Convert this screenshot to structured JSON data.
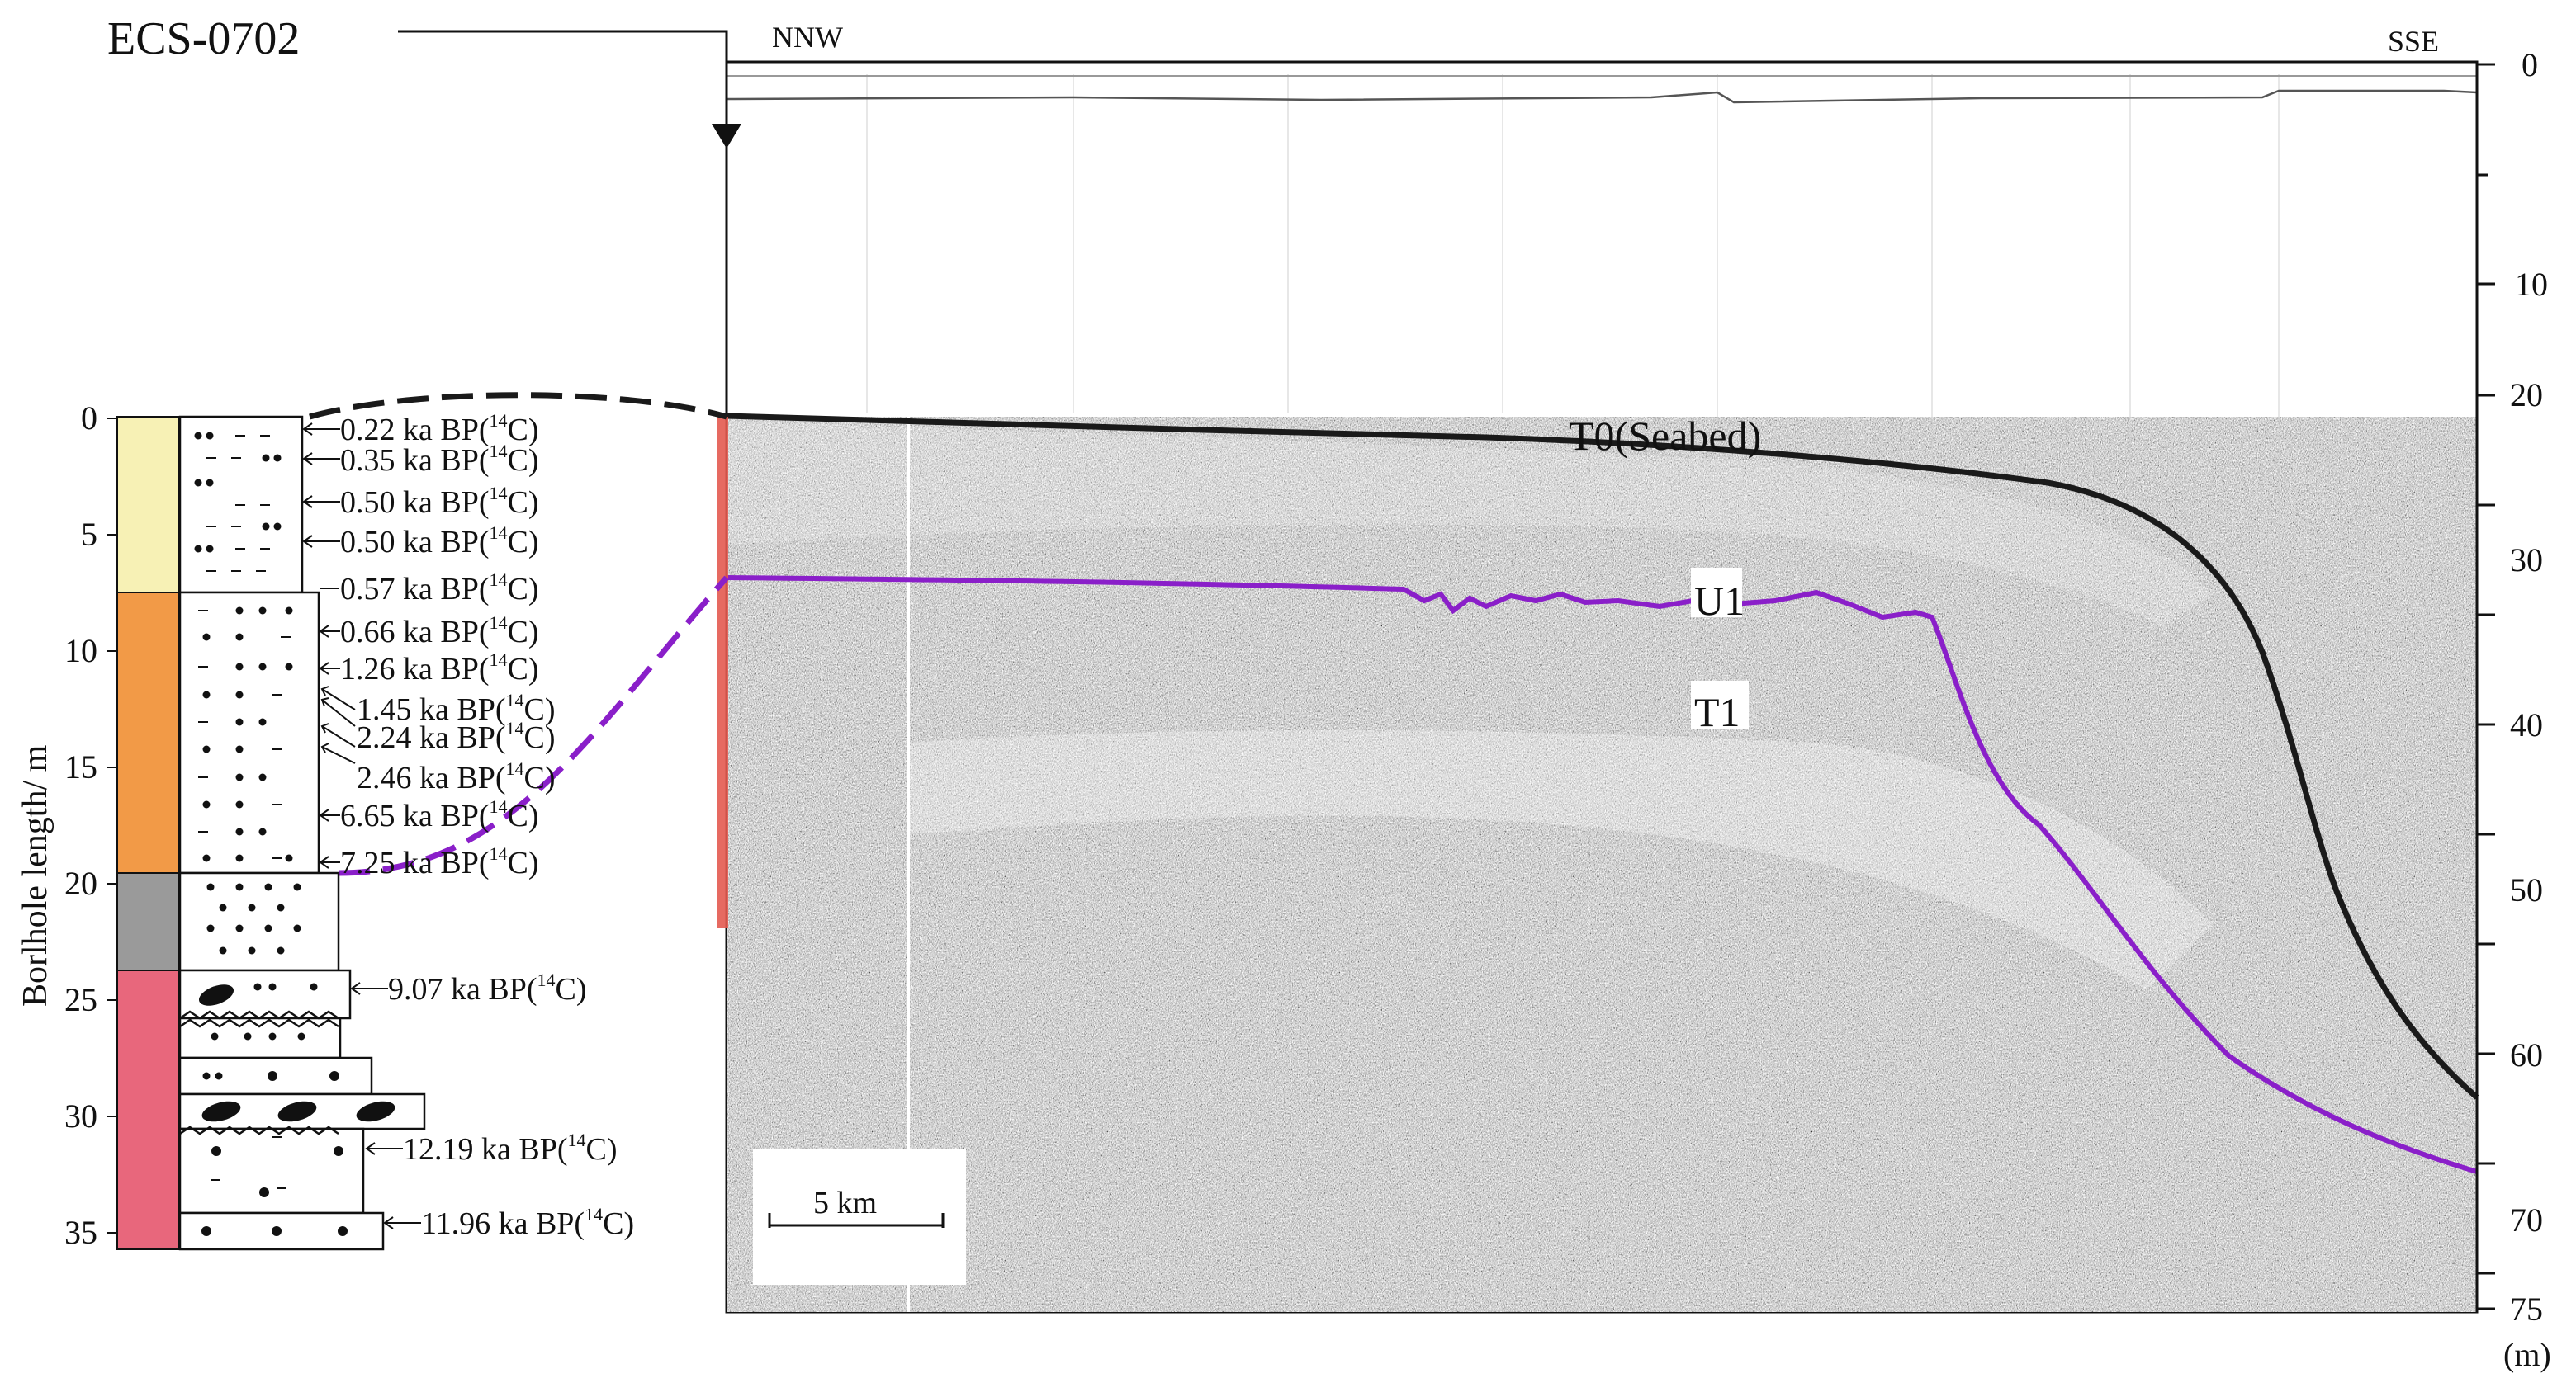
{
  "borehole": {
    "id": "ECS-0702",
    "axis_label": "Borlhole length/ m",
    "depth_ticks": [
      "0",
      "5",
      "10",
      "15",
      "20",
      "25",
      "30",
      "35"
    ],
    "units": [
      {
        "top_m": 0,
        "base_m": 7.5,
        "color": "#f7f1b5"
      },
      {
        "top_m": 7.5,
        "base_m": 19.5,
        "color": "#f29a47"
      },
      {
        "top_m": 19.5,
        "base_m": 24,
        "color": "#9a9a9a"
      },
      {
        "top_m": 24,
        "base_m": 36,
        "color": "#e8677c"
      }
    ],
    "dates": [
      {
        "text": "0.22 ka BP(",
        "sup": "14",
        "tail": "C)",
        "depth_m": 0.5
      },
      {
        "text": "0.35 ka BP(",
        "sup": "14",
        "tail": "C)",
        "depth_m": 2.1
      },
      {
        "text": "0.50 ka BP(",
        "sup": "14",
        "tail": "C)",
        "depth_m": 3.7
      },
      {
        "text": "0.50 ka BP(",
        "sup": "14",
        "tail": "C)",
        "depth_m": 5.4
      },
      {
        "text": "0.57 ka BP(",
        "sup": "14",
        "tail": "C)",
        "depth_m": 7.4
      },
      {
        "text": "0.66 ka BP(",
        "sup": "14",
        "tail": "C)",
        "depth_m": 9.2
      },
      {
        "text": "1.26 ka BP(",
        "sup": "14",
        "tail": "C)",
        "depth_m": 10.8
      },
      {
        "text": "1.45 ka BP(",
        "sup": "14",
        "tail": "C)",
        "depth_m": 12.4
      },
      {
        "text": "2.24 ka BP(",
        "sup": "14",
        "tail": "C)",
        "depth_m": 13.8
      },
      {
        "text": "2.46 ka BP(",
        "sup": "14",
        "tail": "C)",
        "depth_m": 15.7
      },
      {
        "text": "6.65 ka BP(",
        "sup": "14",
        "tail": "C)",
        "depth_m": 17.4
      },
      {
        "text": "7.25 ka BP(",
        "sup": "14",
        "tail": "C)",
        "depth_m": 19.3
      },
      {
        "text": "9.07 ka BP(",
        "sup": "14",
        "tail": "C)",
        "depth_m": 25.3
      },
      {
        "text": "12.19 ka BP(",
        "sup": "14",
        "tail": "C)",
        "depth_m": 32.2
      },
      {
        "text": "11.96 ka BP(",
        "sup": "14",
        "tail": "C)",
        "depth_m": 35.2
      }
    ]
  },
  "profile": {
    "left_label": "NNW",
    "right_label": "SSE",
    "depth_ticks": [
      "0",
      "10",
      "20",
      "30",
      "40",
      "50",
      "60",
      "70",
      "75"
    ],
    "depth_unit": "(m)",
    "scale_label": "5 km",
    "horizons": [
      {
        "name": "T0(Seabed)",
        "color": "#1a1a1a"
      },
      {
        "name": "T1",
        "color": "#8a1fc9"
      }
    ],
    "unit_label": "U1"
  }
}
